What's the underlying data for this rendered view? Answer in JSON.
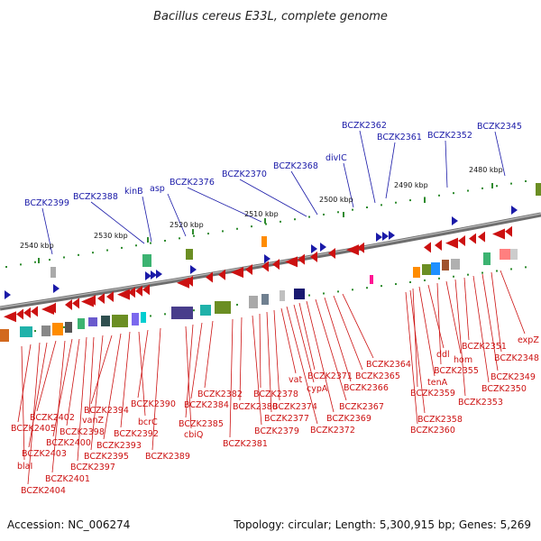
{
  "title": "Bacillus cereus E33L, complete genome",
  "footer": {
    "accession": "Accession: NC_006274",
    "summary": "Topology: circular; Length: 5,300,915 bp; Genes: 5,269"
  },
  "colors": {
    "forward_gene": "#1a1aa8",
    "reverse_gene": "#cc1111",
    "tick": "#2e8b2e",
    "backbone": "#8a8a8a"
  },
  "scale_labels": [
    "2480 kbp",
    "2490 kbp",
    "2500 kbp",
    "2510 kbp",
    "2520 kbp",
    "2530 kbp",
    "2540 kbp"
  ],
  "forward_genes": [
    "BCZK2345",
    "BCZK2352",
    "BCZK2361",
    "BCZK2362",
    "divIC",
    "BCZK2368",
    "BCZK2370",
    "BCZK2376",
    "asp",
    "kinB",
    "BCZK2388",
    "BCZK2399"
  ],
  "reverse_genes": [
    "expZ",
    "BCZK2348",
    "BCZK2349",
    "BCZK2350",
    "BCZK2351",
    "BCZK2353",
    "hom",
    "BCZK2355",
    "ddl",
    "tenA",
    "BCZK2358",
    "BCZK2359",
    "BCZK2360",
    "BCZK2364",
    "BCZK2365",
    "BCZK2366",
    "BCZK2367",
    "BCZK2369",
    "BCZK2371",
    "cypA",
    "BCZK2372",
    "vat",
    "BCZK2374",
    "BCZK2377",
    "BCZK2378",
    "BCZK2379",
    "BCZK2380",
    "BCZK2381",
    "BCZK2382",
    "BCZK2384",
    "BCZK2385",
    "cbiQ",
    "BCZK2389",
    "BCZK2390",
    "bcrC",
    "BCZK2392",
    "BCZK2393",
    "BCZK2394",
    "BCZK2395",
    "vanZ",
    "BCZK2397",
    "BCZK2398",
    "BCZK2400",
    "BCZK2401",
    "BCZK2402",
    "BCZK2403",
    "BCZK2404",
    "BCZK2405",
    "blaI"
  ]
}
